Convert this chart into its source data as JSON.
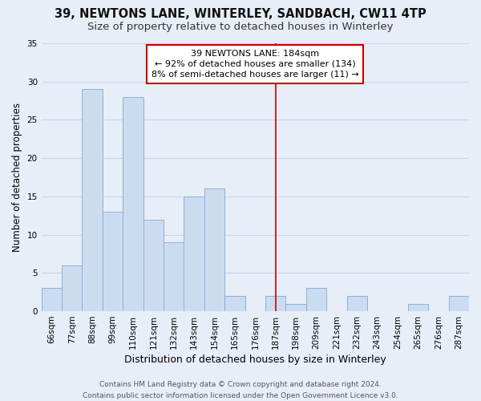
{
  "title": "39, NEWTONS LANE, WINTERLEY, SANDBACH, CW11 4TP",
  "subtitle": "Size of property relative to detached houses in Winterley",
  "xlabel": "Distribution of detached houses by size in Winterley",
  "ylabel": "Number of detached properties",
  "bar_labels": [
    "66sqm",
    "77sqm",
    "88sqm",
    "99sqm",
    "110sqm",
    "121sqm",
    "132sqm",
    "143sqm",
    "154sqm",
    "165sqm",
    "176sqm",
    "187sqm",
    "198sqm",
    "209sqm",
    "221sqm",
    "232sqm",
    "243sqm",
    "254sqm",
    "265sqm",
    "276sqm",
    "287sqm"
  ],
  "bar_values": [
    3,
    6,
    29,
    13,
    28,
    12,
    9,
    15,
    16,
    2,
    0,
    2,
    1,
    3,
    0,
    2,
    0,
    0,
    1,
    0,
    2
  ],
  "bar_color": "#ccdcf0",
  "bar_edge_color": "#8ab0d8",
  "ylim": [
    0,
    35
  ],
  "yticks": [
    0,
    5,
    10,
    15,
    20,
    25,
    30,
    35
  ],
  "vline_index": 11,
  "vline_color": "#cc0000",
  "annotation_text": "39 NEWTONS LANE: 184sqm\n← 92% of detached houses are smaller (134)\n8% of semi-detached houses are larger (11) →",
  "annotation_box_color": "#ffffff",
  "annotation_box_edge": "#cc0000",
  "footer_line1": "Contains HM Land Registry data © Crown copyright and database right 2024.",
  "footer_line2": "Contains public sector information licensed under the Open Government Licence v3.0.",
  "background_color": "#e8eef8",
  "grid_color": "#c8d4e8",
  "title_fontsize": 10.5,
  "subtitle_fontsize": 9.5,
  "xlabel_fontsize": 9,
  "ylabel_fontsize": 8.5,
  "tick_fontsize": 7.5,
  "footer_fontsize": 6.5,
  "annot_fontsize": 8
}
